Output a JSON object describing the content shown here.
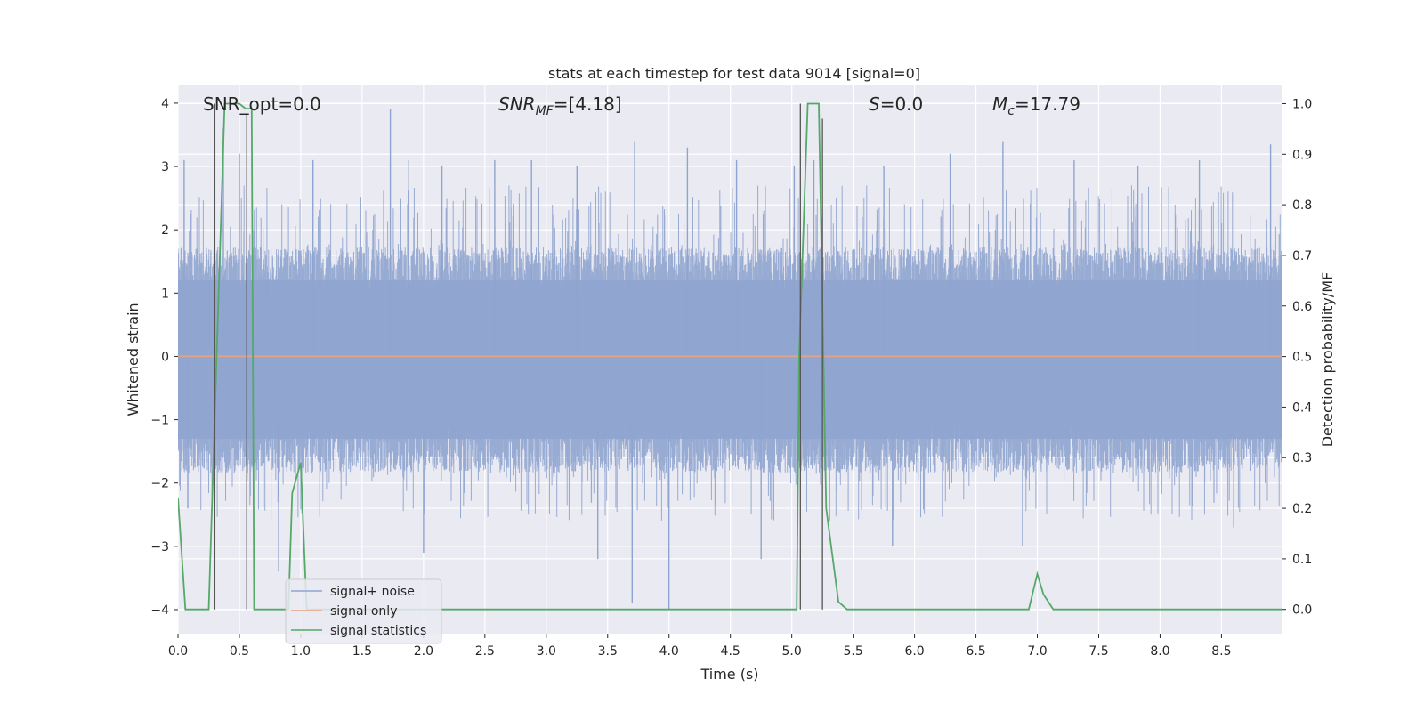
{
  "chart_data": {
    "type": "line",
    "title": "stats at each timestep for test data 9014 [signal=0]",
    "xlabel": "Time (s)",
    "ylabel": "Whitened strain",
    "ylabel_right": "Detection probability/MF",
    "xlim": [
      0,
      8.99
    ],
    "ylim": [
      -4.38,
      4.28
    ],
    "ylim_right": [
      -0.048,
      1.036
    ],
    "grid": true,
    "x_ticks": [
      0.0,
      0.5,
      1.0,
      1.5,
      2.0,
      2.5,
      3.0,
      3.5,
      4.0,
      4.5,
      5.0,
      5.5,
      6.0,
      6.5,
      7.0,
      7.5,
      8.0,
      8.5
    ],
    "x_tick_labels": [
      "0.0",
      "0.5",
      "1.0",
      "1.5",
      "2.0",
      "2.5",
      "3.0",
      "3.5",
      "4.0",
      "4.5",
      "5.0",
      "5.5",
      "6.0",
      "6.5",
      "7.0",
      "7.5",
      "8.0",
      "8.5"
    ],
    "y_ticks": [
      -4,
      -3,
      -2,
      -1,
      0,
      1,
      2,
      3,
      4
    ],
    "y_tick_labels": [
      "−4",
      "−3",
      "−2",
      "−1",
      "0",
      "1",
      "2",
      "3",
      "4"
    ],
    "y_ticks_right": [
      0.0,
      0.1,
      0.2,
      0.3,
      0.4,
      0.5,
      0.6,
      0.7,
      0.8,
      0.9,
      1.0
    ],
    "y_tick_labels_right": [
      "0.0",
      "0.1",
      "0.2",
      "0.3",
      "0.4",
      "0.5",
      "0.6",
      "0.7",
      "0.8",
      "0.9",
      "1.0"
    ],
    "annotations": {
      "snr_opt": "SNR_opt=0.0",
      "snr_mf_name": "SNR",
      "snr_mf_sub": "MF",
      "snr_mf_value": "=[4.18]",
      "s_name": "S",
      "s_value": "=0.0",
      "mc_name": "M",
      "mc_sub": "c",
      "mc_value": "=17.79"
    },
    "legend": {
      "position": "lower-left",
      "entries": [
        "signal+ noise",
        "signal only",
        "signal statistics"
      ]
    },
    "series": [
      {
        "name": "signal+ noise",
        "axis": "left",
        "kind": "noise",
        "color": "#8fa4cf",
        "t_start": 0.0,
        "t_end": 8.99,
        "sample_step": 0.002,
        "envelope_lower": -1.6,
        "envelope_upper": 1.5,
        "peaks": [
          {
            "t": 0.05,
            "v": 3.1
          },
          {
            "t": 0.37,
            "v": 3.6
          },
          {
            "t": 0.5,
            "v": 3.2
          },
          {
            "t": 1.1,
            "v": 3.1
          },
          {
            "t": 1.73,
            "v": 3.9
          },
          {
            "t": 1.88,
            "v": 3.1
          },
          {
            "t": 2.15,
            "v": 3.0
          },
          {
            "t": 2.58,
            "v": 3.1
          },
          {
            "t": 2.88,
            "v": 3.1
          },
          {
            "t": 3.25,
            "v": 3.0
          },
          {
            "t": 3.72,
            "v": 3.4
          },
          {
            "t": 4.15,
            "v": 3.3
          },
          {
            "t": 4.55,
            "v": 3.1
          },
          {
            "t": 5.02,
            "v": 3.0
          },
          {
            "t": 5.18,
            "v": 3.1
          },
          {
            "t": 5.75,
            "v": 3.0
          },
          {
            "t": 6.29,
            "v": 3.2
          },
          {
            "t": 6.72,
            "v": 3.4
          },
          {
            "t": 7.3,
            "v": 3.1
          },
          {
            "t": 7.82,
            "v": 3.0
          },
          {
            "t": 8.32,
            "v": 3.1
          },
          {
            "t": 8.9,
            "v": 3.35
          }
        ],
        "troughs": [
          {
            "t": 0.08,
            "v": -2.4
          },
          {
            "t": 0.82,
            "v": -3.4
          },
          {
            "t": 2.0,
            "v": -3.1
          },
          {
            "t": 3.42,
            "v": -3.2
          },
          {
            "t": 3.7,
            "v": -3.9
          },
          {
            "t": 4.0,
            "v": -4.0
          },
          {
            "t": 4.75,
            "v": -3.2
          },
          {
            "t": 5.82,
            "v": -3.0
          },
          {
            "t": 6.88,
            "v": -3.0
          },
          {
            "t": 8.6,
            "v": -2.7
          }
        ]
      },
      {
        "name": "signal only",
        "axis": "left",
        "color": "#e7a284",
        "x": [
          0.0,
          8.99
        ],
        "y": [
          0.0,
          0.0
        ]
      },
      {
        "name": "signal statistics",
        "axis": "right",
        "color": "#55a868",
        "x": [
          0.0,
          0.06,
          0.25,
          0.38,
          0.5,
          0.55,
          0.6,
          0.62,
          0.9,
          0.93,
          1.0,
          1.04,
          1.05,
          5.04,
          5.06,
          5.13,
          5.22,
          5.28,
          5.38,
          5.45,
          6.93,
          7.0,
          7.05,
          7.13,
          8.99
        ],
        "y": [
          0.22,
          0.0,
          0.0,
          1.0,
          1.0,
          0.99,
          0.99,
          0.0,
          0.0,
          0.23,
          0.29,
          0.05,
          0.0,
          0.0,
          0.5,
          1.0,
          1.0,
          0.2,
          0.015,
          0.0,
          0.0,
          0.07,
          0.03,
          0.0,
          0.0
        ]
      }
    ],
    "vertical_markers": [
      {
        "x": 0.3,
        "y_top": 1.0
      },
      {
        "x": 0.56,
        "y_top": 0.98
      },
      {
        "x": 5.07,
        "y_top": 1.0
      },
      {
        "x": 5.25,
        "y_top": 0.97
      }
    ]
  }
}
